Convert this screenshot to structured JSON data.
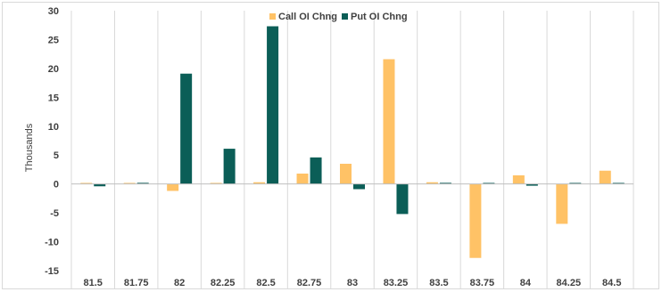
{
  "chart_data": {
    "type": "bar",
    "categories": [
      "81.5",
      "81.75",
      "82",
      "82.25",
      "82.5",
      "82.75",
      "83",
      "83.25",
      "83.5",
      "83.75",
      "84",
      "84.25",
      "84.5"
    ],
    "series": [
      {
        "name": "Call OI Chng",
        "color": "#FFC266",
        "values": [
          0,
          0,
          -1.2,
          0.1,
          0.3,
          1.8,
          3.5,
          21.6,
          0.3,
          -12.8,
          1.5,
          -6.9,
          2.3
        ]
      },
      {
        "name": "Put OI Chng",
        "color": "#0B5E57",
        "values": [
          -0.4,
          0.2,
          19.1,
          6.1,
          27.3,
          4.6,
          -0.9,
          -5.2,
          0.2,
          0,
          -0.3,
          0,
          0
        ]
      }
    ],
    "title": "",
    "xlabel": "",
    "ylabel": "Thousands",
    "ylim": [
      -15,
      30
    ],
    "yticks": [
      30,
      25,
      20,
      15,
      10,
      5,
      0,
      -5,
      -10,
      -15
    ],
    "grid": "vertical category separators",
    "legend": "top-center"
  }
}
